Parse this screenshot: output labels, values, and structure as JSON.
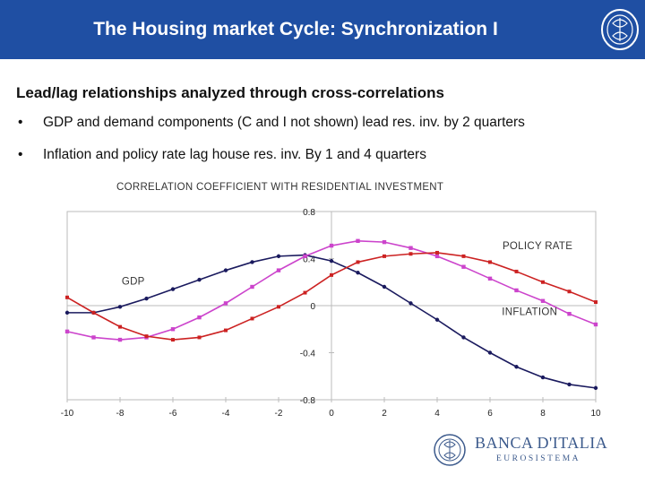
{
  "header": {
    "title": "The Housing market Cycle: Synchronization I"
  },
  "subtitle": "Lead/lag relationships analyzed through cross-correlations",
  "bullets": [
    "GDP and demand components (C and I not shown) lead res. inv. by 2 quarters",
    "Inflation and policy rate lag house res. inv. By 1 and 4 quarters"
  ],
  "bullet_symbol": "•",
  "footer": {
    "logo_name": "BANCA D'ITALIA",
    "logo_sub": "EUROSISTEMA"
  },
  "colors": {
    "header_bg": "#1f4fa3",
    "gdp": "#1a1a5e",
    "inflation": "#cc44cc",
    "policy_rate": "#cc2222",
    "axis": "#bbbbbb",
    "logo": "#3c5a8c"
  },
  "chart_data": {
    "type": "line",
    "title": "CORRELATION COEFFICIENT WITH RESIDENTIAL INVESTMENT",
    "xlabel": "",
    "ylabel": "",
    "xlim": [
      -10,
      10
    ],
    "ylim": [
      -0.8,
      0.8
    ],
    "x_ticks": [
      "-10",
      "-8",
      "-6",
      "-4",
      "-2",
      "0",
      "2",
      "4",
      "6",
      "8",
      "10"
    ],
    "y_ticks": [
      "0.8",
      "0.4",
      "0",
      "-0.4",
      "-0.8"
    ],
    "x": [
      -10,
      -9,
      -8,
      -7,
      -6,
      -5,
      -4,
      -3,
      -2,
      -1,
      0,
      1,
      2,
      3,
      4,
      5,
      6,
      7,
      8,
      9,
      10
    ],
    "series": [
      {
        "name": "GDP",
        "label": "GDP",
        "color": "#1a1a5e",
        "values": [
          -0.06,
          -0.06,
          -0.01,
          0.06,
          0.14,
          0.22,
          0.3,
          0.37,
          0.42,
          0.43,
          0.38,
          0.28,
          0.16,
          0.02,
          -0.12,
          -0.27,
          -0.4,
          -0.52,
          -0.61,
          -0.67,
          -0.7
        ]
      },
      {
        "name": "INFLATION",
        "label": "INFLATION",
        "color": "#cc44cc",
        "values": [
          -0.22,
          -0.27,
          -0.29,
          -0.27,
          -0.2,
          -0.1,
          0.02,
          0.16,
          0.3,
          0.42,
          0.51,
          0.55,
          0.54,
          0.49,
          0.42,
          0.33,
          0.23,
          0.13,
          0.04,
          -0.07,
          -0.16
        ]
      },
      {
        "name": "POLICY RATE",
        "label": "POLICY RATE",
        "color": "#cc2222",
        "values": [
          0.07,
          -0.06,
          -0.18,
          -0.26,
          -0.29,
          -0.27,
          -0.21,
          -0.11,
          -0.01,
          0.11,
          0.26,
          0.37,
          0.42,
          0.44,
          0.45,
          0.42,
          0.37,
          0.29,
          0.2,
          0.12,
          0.03
        ]
      }
    ]
  }
}
